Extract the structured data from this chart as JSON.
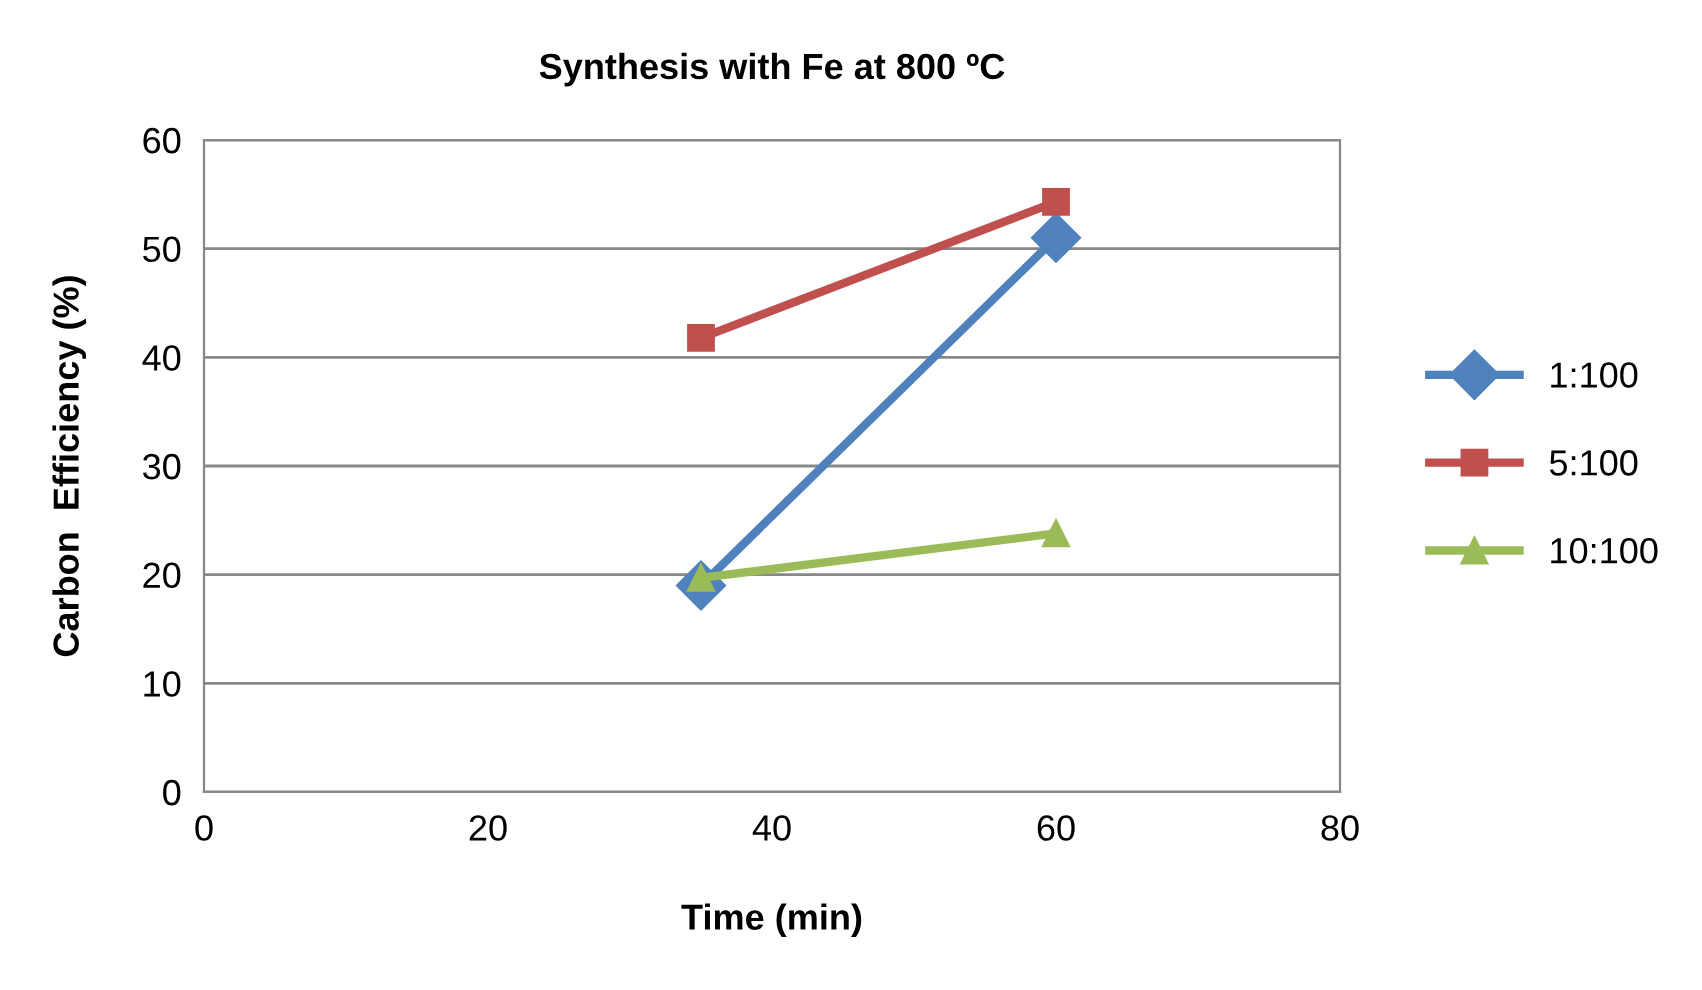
{
  "chart_data": {
    "type": "line",
    "title": "Synthesis with Fe at 800 ºC",
    "xlabel": "Time (min)",
    "ylabel": "Carbon  Efficiency (%)",
    "x": [
      35,
      60
    ],
    "series": [
      {
        "name": "1:100",
        "color": "#4f81bd",
        "values": [
          19,
          51
        ],
        "marker": "diamond"
      },
      {
        "name": "5:100",
        "color": "#c0504d",
        "values": [
          41.8,
          54.3
        ],
        "marker": "square"
      },
      {
        "name": "10:100",
        "color": "#9bbb59",
        "values": [
          19.7,
          23.8
        ],
        "marker": "triangle"
      }
    ],
    "xlim": [
      0,
      80
    ],
    "xticks": [
      0,
      20,
      40,
      60,
      80
    ],
    "ylim": [
      0,
      60
    ],
    "yticks": [
      0,
      10,
      20,
      30,
      40,
      50,
      60
    ],
    "grid": "y",
    "legend": "right",
    "line_style": "solid"
  }
}
